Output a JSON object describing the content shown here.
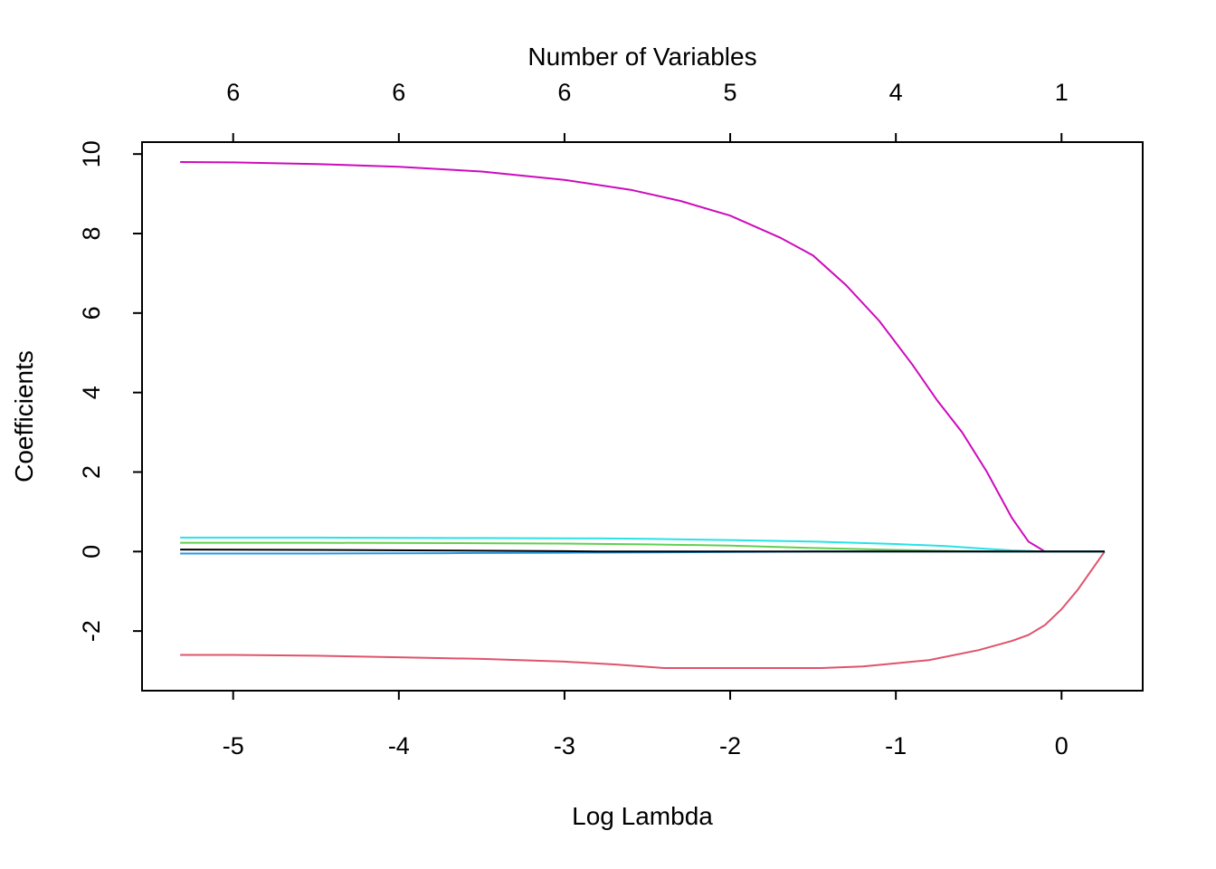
{
  "chart_data": {
    "type": "line",
    "title": "",
    "xlabel": "Log Lambda",
    "ylabel": "Coefficients",
    "top_axis_label": "Number of Variables",
    "xlim": [
      -5.55,
      0.49
    ],
    "ylim": [
      -3.5,
      10.3
    ],
    "x_ticks": [
      -5,
      -4,
      -3,
      -2,
      -1,
      0
    ],
    "x_tick_labels": [
      "-5",
      "-4",
      "-3",
      "-2",
      "-1",
      "0"
    ],
    "y_ticks": [
      -2,
      0,
      2,
      4,
      6,
      8,
      10
    ],
    "y_tick_labels": [
      "-2",
      "0",
      "2",
      "4",
      "6",
      "8",
      "10"
    ],
    "top_ticks": [
      -5,
      -4,
      -3,
      -2,
      -1,
      0
    ],
    "top_tick_labels": [
      "6",
      "6",
      "6",
      "5",
      "4",
      "1"
    ],
    "grid": false,
    "legend": "none",
    "series": [
      {
        "color": "#CD0BBC",
        "x": [
          -5.32,
          -5.0,
          -4.5,
          -4.0,
          -3.5,
          -3.0,
          -2.6,
          -2.3,
          -2.0,
          -1.7,
          -1.5,
          -1.3,
          -1.1,
          -0.9,
          -0.75,
          -0.6,
          -0.45,
          -0.3,
          -0.2,
          -0.1,
          0.0,
          0.1,
          0.26
        ],
        "y": [
          9.8,
          9.79,
          9.75,
          9.68,
          9.56,
          9.35,
          9.1,
          8.82,
          8.45,
          7.9,
          7.45,
          6.7,
          5.8,
          4.7,
          3.8,
          3.0,
          2.0,
          0.85,
          0.25,
          0.0,
          0.0,
          0.0,
          0.0
        ]
      },
      {
        "color": "#DF536B",
        "x": [
          -5.32,
          -5.0,
          -4.5,
          -4.0,
          -3.5,
          -3.0,
          -2.7,
          -2.4,
          -2.0,
          -1.7,
          -1.45,
          -1.2,
          -1.0,
          -0.8,
          -0.5,
          -0.3,
          -0.2,
          -0.1,
          0.0,
          0.1,
          0.26
        ],
        "y": [
          -2.6,
          -2.6,
          -2.62,
          -2.66,
          -2.7,
          -2.77,
          -2.84,
          -2.93,
          -2.93,
          -2.93,
          -2.93,
          -2.89,
          -2.81,
          -2.73,
          -2.48,
          -2.25,
          -2.1,
          -1.85,
          -1.45,
          -0.95,
          0.0
        ]
      },
      {
        "color": "#28E2E5",
        "x": [
          -5.32,
          -4.5,
          -3.5,
          -2.8,
          -2.5,
          -2.0,
          -1.5,
          -1.0,
          -0.7,
          -0.5,
          -0.3,
          -0.1,
          0.26
        ],
        "y": [
          0.35,
          0.35,
          0.34,
          0.33,
          0.32,
          0.29,
          0.25,
          0.19,
          0.14,
          0.08,
          0.03,
          0.0,
          0.0
        ]
      },
      {
        "color": "#61D04F",
        "x": [
          -5.32,
          -4.5,
          -3.5,
          -3.0,
          -2.5,
          -2.0,
          -1.5,
          -1.0,
          -0.6,
          -0.4,
          -0.1,
          0.26
        ],
        "y": [
          0.22,
          0.22,
          0.21,
          0.2,
          0.18,
          0.15,
          0.09,
          0.04,
          0.01,
          0.0,
          0.0,
          0.0
        ]
      },
      {
        "color": "#2297E6",
        "x": [
          -5.32,
          -4.5,
          -3.7,
          -3.0,
          -2.5,
          -2.0,
          -1.5,
          -1.0,
          -0.6,
          -0.3,
          0.26
        ],
        "y": [
          -0.05,
          -0.05,
          -0.04,
          -0.03,
          -0.02,
          -0.01,
          0.0,
          0.0,
          0.0,
          0.0,
          0.0
        ]
      },
      {
        "color": "#000000",
        "x": [
          -5.32,
          -4.5,
          -3.5,
          -3.0,
          -2.8,
          -2.5,
          -1.8,
          0.26
        ],
        "y": [
          0.05,
          0.04,
          0.02,
          0.01,
          0.0,
          0.0,
          0.0,
          0.0
        ]
      }
    ]
  }
}
